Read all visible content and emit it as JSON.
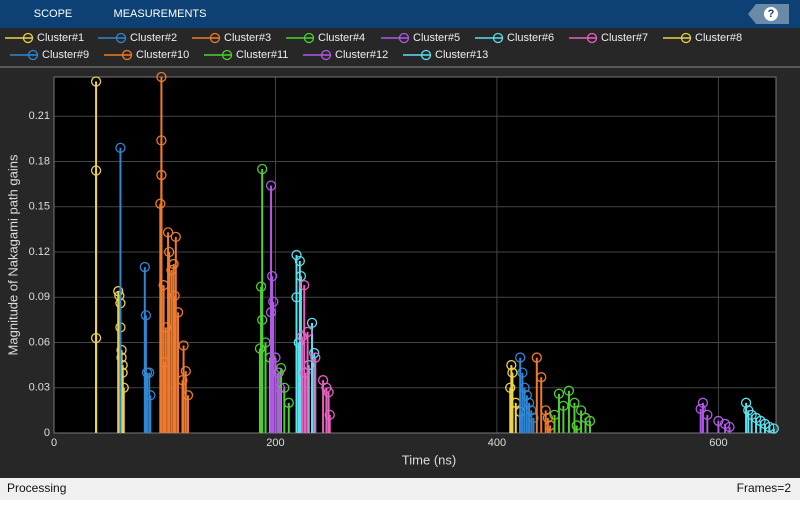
{
  "toolbar": {
    "tabs": [
      "SCOPE",
      "MEASUREMENTS"
    ],
    "help": "?"
  },
  "chart_data": {
    "type": "stem",
    "xlabel": "Time (ns)",
    "ylabel": "Magnitude of Nakagami path gains",
    "xlim": [
      0,
      652
    ],
    "ylim": [
      0,
      0.236
    ],
    "xticks": [
      0,
      200,
      400,
      600
    ],
    "yticks": [
      0,
      0.03,
      0.06,
      0.09,
      0.12,
      0.15,
      0.18,
      0.21
    ],
    "grid": true,
    "series": [
      {
        "name": "Cluster#1",
        "color": "#edd24c",
        "x": [
          38,
          38,
          38,
          58,
          59,
          60,
          60,
          61,
          61,
          62,
          62,
          63
        ],
        "values": [
          0.233,
          0.174,
          0.063,
          0.094,
          0.091,
          0.086,
          0.07,
          0.055,
          0.05,
          0.045,
          0.04,
          0.03
        ]
      },
      {
        "name": "Cluster#2",
        "color": "#2f86d4",
        "x": [
          60,
          82,
          83,
          84,
          86,
          87
        ],
        "values": [
          0.189,
          0.11,
          0.078,
          0.04,
          0.04,
          0.025
        ]
      },
      {
        "name": "Cluster#3",
        "color": "#f07a2c",
        "x": [
          97,
          97,
          97,
          96,
          103,
          110,
          104,
          108,
          106,
          99,
          109,
          112,
          101,
          117,
          100,
          119,
          116,
          121
        ],
        "values": [
          0.236,
          0.194,
          0.171,
          0.152,
          0.133,
          0.13,
          0.12,
          0.112,
          0.108,
          0.098,
          0.091,
          0.08,
          0.07,
          0.058,
          0.047,
          0.041,
          0.035,
          0.025
        ]
      },
      {
        "name": "Cluster#4",
        "color": "#4fcf34",
        "x": [
          188,
          187,
          188,
          186,
          191,
          195,
          203,
          208,
          212,
          205
        ],
        "values": [
          0.175,
          0.097,
          0.075,
          0.056,
          0.06,
          0.05,
          0.04,
          0.03,
          0.02,
          0.043
        ]
      },
      {
        "name": "Cluster#5",
        "color": "#b258e8",
        "x": [
          196,
          197,
          198,
          196,
          200,
          202,
          204
        ],
        "values": [
          0.164,
          0.104,
          0.087,
          0.08,
          0.05,
          0.04,
          0.03
        ]
      },
      {
        "name": "Cluster#6",
        "color": "#5ce0ee",
        "x": [
          219,
          222,
          223,
          219,
          233,
          221,
          235,
          230
        ],
        "values": [
          0.118,
          0.114,
          0.104,
          0.09,
          0.073,
          0.06,
          0.053,
          0.045
        ]
      },
      {
        "name": "Cluster#7",
        "color": "#e860c0",
        "x": [
          226,
          229,
          224,
          236,
          227,
          243,
          246,
          248,
          249
        ],
        "values": [
          0.098,
          0.067,
          0.064,
          0.05,
          0.04,
          0.035,
          0.03,
          0.027,
          0.012
        ]
      },
      {
        "name": "Cluster#8",
        "color": "#edd24c",
        "x": [
          413,
          414,
          412,
          417,
          421
        ],
        "values": [
          0.045,
          0.04,
          0.03,
          0.02,
          0.014
        ]
      },
      {
        "name": "Cluster#9",
        "color": "#2f86d4",
        "x": [
          421,
          423,
          425,
          427,
          429,
          431,
          433
        ],
        "values": [
          0.05,
          0.04,
          0.03,
          0.025,
          0.02,
          0.015,
          0.01
        ]
      },
      {
        "name": "Cluster#10",
        "color": "#f07a2c",
        "x": [
          436,
          440,
          444,
          446,
          448
        ],
        "values": [
          0.05,
          0.037,
          0.015,
          0.01,
          0.005
        ]
      },
      {
        "name": "Cluster#11",
        "color": "#4fcf34",
        "x": [
          465,
          456,
          470,
          460,
          476,
          452,
          480,
          484,
          472
        ],
        "values": [
          0.028,
          0.026,
          0.02,
          0.018,
          0.015,
          0.012,
          0.01,
          0.008,
          0.005
        ]
      },
      {
        "name": "Cluster#12",
        "color": "#b258e8",
        "x": [
          586,
          584,
          590,
          600,
          606,
          610
        ],
        "values": [
          0.02,
          0.016,
          0.012,
          0.008,
          0.006,
          0.004
        ]
      },
      {
        "name": "Cluster#13",
        "color": "#5ce0ee",
        "x": [
          625,
          627,
          630,
          634,
          638,
          642,
          646,
          650
        ],
        "values": [
          0.02,
          0.015,
          0.012,
          0.01,
          0.008,
          0.006,
          0.004,
          0.003
        ]
      }
    ]
  },
  "status": {
    "left": "Processing",
    "right": "Frames=2"
  }
}
